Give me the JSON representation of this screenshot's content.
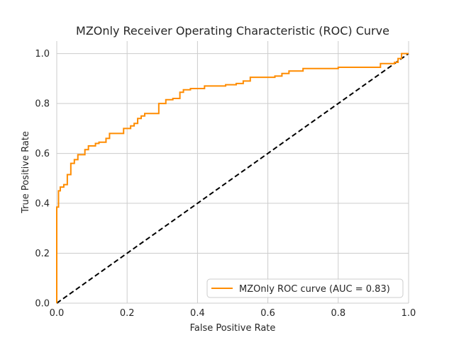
{
  "chart_data": {
    "type": "line",
    "title": "MZOnly Receiver Operating Characteristic (ROC) Curve",
    "xlabel": "False Positive Rate",
    "ylabel": "True Positive Rate",
    "xlim": [
      0.0,
      1.0
    ],
    "ylim": [
      0.0,
      1.05
    ],
    "xticks": [
      "0.0",
      "0.2",
      "0.4",
      "0.6",
      "0.8",
      "1.0"
    ],
    "yticks": [
      "0.0",
      "0.2",
      "0.4",
      "0.6",
      "0.8",
      "1.0"
    ],
    "grid": true,
    "legend_position": "lower-right",
    "series": [
      {
        "name": "MZOnly ROC curve (AUC = 0.83)",
        "color": "#ff8c00",
        "style": "solid-step",
        "x": [
          0.0,
          0.0,
          0.005,
          0.005,
          0.01,
          0.01,
          0.02,
          0.02,
          0.03,
          0.03,
          0.04,
          0.04,
          0.05,
          0.05,
          0.06,
          0.06,
          0.08,
          0.08,
          0.09,
          0.09,
          0.11,
          0.11,
          0.12,
          0.12,
          0.14,
          0.14,
          0.15,
          0.15,
          0.19,
          0.19,
          0.21,
          0.21,
          0.22,
          0.22,
          0.23,
          0.23,
          0.24,
          0.24,
          0.25,
          0.25,
          0.29,
          0.29,
          0.31,
          0.31,
          0.33,
          0.33,
          0.35,
          0.35,
          0.36,
          0.36,
          0.38,
          0.38,
          0.42,
          0.42,
          0.48,
          0.48,
          0.51,
          0.51,
          0.53,
          0.53,
          0.55,
          0.55,
          0.62,
          0.62,
          0.64,
          0.64,
          0.66,
          0.66,
          0.7,
          0.7,
          0.8,
          0.8,
          0.92,
          0.92,
          0.96,
          0.96,
          0.97,
          0.97,
          0.98,
          0.98,
          1.0
        ],
        "y": [
          0.0,
          0.385,
          0.385,
          0.45,
          0.45,
          0.465,
          0.465,
          0.475,
          0.475,
          0.515,
          0.515,
          0.56,
          0.56,
          0.575,
          0.575,
          0.595,
          0.595,
          0.615,
          0.615,
          0.63,
          0.63,
          0.64,
          0.64,
          0.645,
          0.645,
          0.66,
          0.66,
          0.68,
          0.68,
          0.7,
          0.7,
          0.71,
          0.71,
          0.72,
          0.72,
          0.74,
          0.74,
          0.75,
          0.75,
          0.76,
          0.76,
          0.8,
          0.8,
          0.815,
          0.815,
          0.82,
          0.82,
          0.845,
          0.845,
          0.855,
          0.855,
          0.86,
          0.86,
          0.87,
          0.87,
          0.875,
          0.875,
          0.88,
          0.88,
          0.89,
          0.89,
          0.905,
          0.905,
          0.91,
          0.91,
          0.92,
          0.92,
          0.93,
          0.93,
          0.94,
          0.94,
          0.945,
          0.945,
          0.96,
          0.96,
          0.965,
          0.965,
          0.98,
          0.98,
          1.0,
          1.0
        ]
      },
      {
        "name": "",
        "color": "#000000",
        "style": "dashed",
        "x": [
          0.0,
          1.0
        ],
        "y": [
          0.0,
          1.0
        ]
      }
    ]
  }
}
